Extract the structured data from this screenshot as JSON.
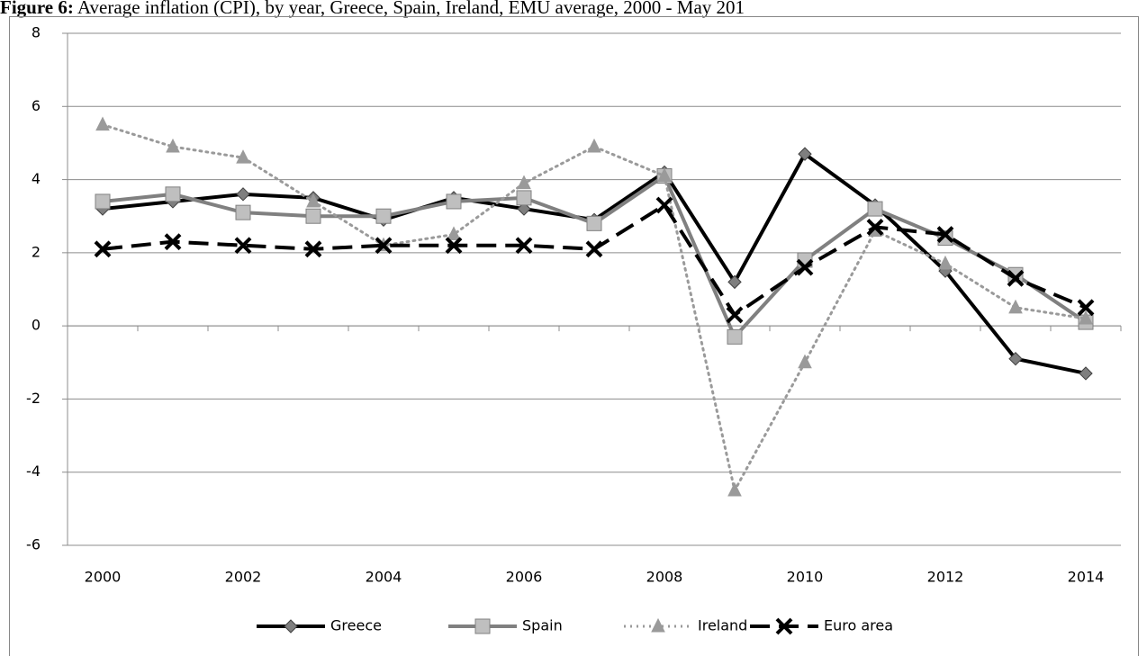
{
  "chart_data": {
    "type": "line",
    "figure_label": "Figure 6:",
    "title": "Average inflation (CPI), by year, Greece, Spain, Ireland, EMU average, 2000 - May 201",
    "categories": [
      "2000",
      null,
      "2002",
      null,
      "2004",
      null,
      "2006",
      null,
      "2008",
      null,
      "2010",
      null,
      "2012",
      null,
      "2014"
    ],
    "ylim": [
      -6,
      8
    ],
    "yticks": [
      -6,
      -4,
      -2,
      0,
      2,
      4,
      6,
      8
    ],
    "grid": true,
    "legend": "bottom",
    "series": [
      {
        "name": "Greece",
        "color": "#000000",
        "marker_color": "#7f7f7f",
        "line_style": "solid",
        "marker": "diamond",
        "values": [
          3.2,
          3.4,
          3.6,
          3.5,
          2.9,
          3.5,
          3.2,
          2.9,
          4.2,
          1.2,
          4.7,
          3.3,
          1.5,
          -0.9,
          -1.3
        ]
      },
      {
        "name": "Spain",
        "color": "#808080",
        "marker_color": "#bfbfbf",
        "line_style": "solid",
        "marker": "square",
        "values": [
          3.4,
          3.6,
          3.1,
          3.0,
          3.0,
          3.4,
          3.5,
          2.8,
          4.1,
          -0.3,
          1.8,
          3.2,
          2.4,
          1.4,
          0.1
        ]
      },
      {
        "name": "Ireland",
        "color": "#9a9a9a",
        "marker_color": "#9a9a9a",
        "line_style": "dotted",
        "marker": "triangle",
        "values": [
          5.5,
          4.9,
          4.6,
          3.4,
          2.2,
          2.5,
          3.9,
          4.9,
          4.1,
          -4.5,
          -1.0,
          2.6,
          1.7,
          0.5,
          0.2
        ]
      },
      {
        "name": "Euro area",
        "color": "#000000",
        "marker_color": "#000000",
        "line_style": "dashed",
        "marker": "x",
        "values": [
          2.1,
          2.3,
          2.2,
          2.1,
          2.2,
          2.2,
          2.2,
          2.1,
          3.3,
          0.3,
          1.6,
          2.7,
          2.5,
          1.3,
          0.5
        ]
      }
    ]
  }
}
